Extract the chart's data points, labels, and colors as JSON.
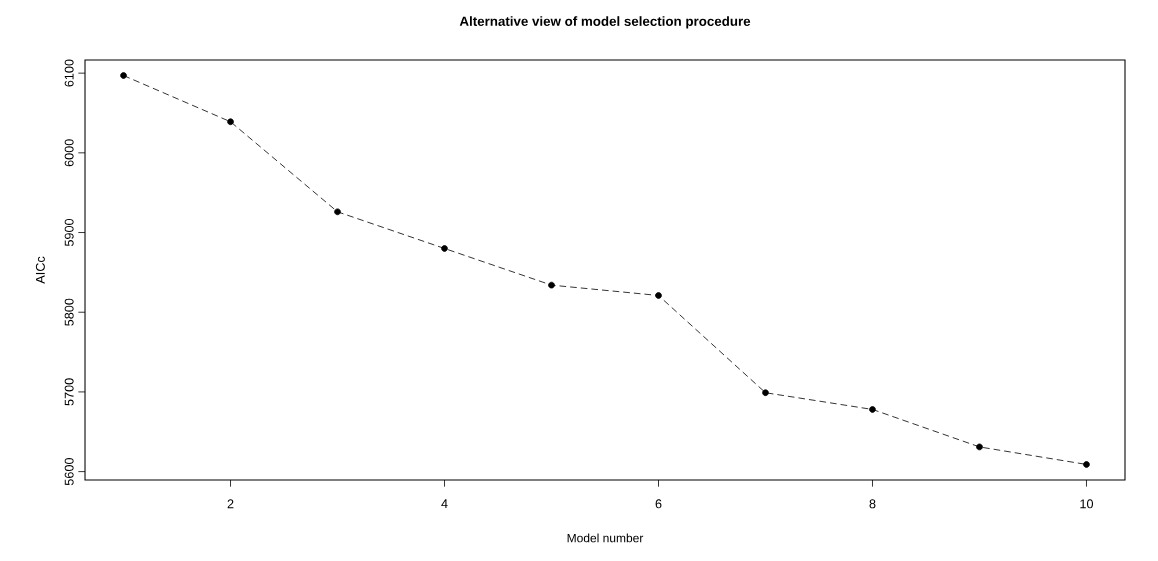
{
  "chart_data": {
    "type": "line",
    "title": "Alternative view of model selection procedure",
    "xlabel": "Model number",
    "ylabel": "AICc",
    "x": [
      1,
      2,
      3,
      4,
      5,
      6,
      7,
      8,
      9,
      10
    ],
    "series": [
      {
        "color": "#000000",
        "values": [
          6097,
          6039,
          5926,
          5880,
          5834,
          5821,
          5699,
          5678,
          5631,
          5609
        ]
      }
    ],
    "xlim": [
      0.64,
      10.36
    ],
    "ylim": [
      5589.5,
      6116.5
    ],
    "xticks": [
      2,
      4,
      6,
      8,
      10
    ],
    "yticks": [
      5600,
      5700,
      5800,
      5900,
      6000,
      6100
    ],
    "marker": "circle",
    "line_style": "dashed"
  }
}
